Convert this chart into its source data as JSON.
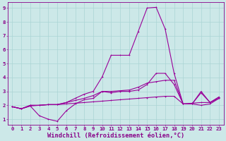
{
  "xlabel": "Windchill (Refroidissement éolien,°C)",
  "bg_color": "#cce8e8",
  "line_color": "#990099",
  "xlim": [
    -0.5,
    23.5
  ],
  "ylim": [
    0.6,
    9.4
  ],
  "yticks": [
    1,
    2,
    3,
    4,
    5,
    6,
    7,
    8,
    9
  ],
  "xticks": [
    0,
    1,
    2,
    3,
    4,
    5,
    6,
    7,
    8,
    9,
    10,
    11,
    12,
    13,
    14,
    15,
    16,
    17,
    18,
    19,
    20,
    21,
    22,
    23
  ],
  "grid_color": "#aad4d4",
  "axis_color": "#880088",
  "tick_fontsize": 5.2,
  "xlabel_fontsize": 6.2,
  "line_width": 0.8,
  "marker_size": 1.8,
  "lines": [
    [
      1.9,
      1.75,
      2.0,
      2.0,
      2.05,
      2.05,
      2.1,
      2.15,
      2.2,
      2.25,
      2.3,
      2.35,
      2.4,
      2.45,
      2.5,
      2.55,
      2.6,
      2.65,
      2.65,
      2.1,
      2.1,
      2.0,
      2.1,
      2.5
    ],
    [
      1.9,
      1.75,
      1.95,
      1.25,
      1.0,
      0.85,
      1.6,
      2.1,
      2.4,
      2.5,
      3.0,
      2.9,
      3.0,
      3.0,
      3.1,
      3.5,
      4.3,
      4.3,
      3.5,
      2.1,
      2.1,
      3.0,
      2.2,
      2.6
    ],
    [
      1.9,
      1.75,
      1.95,
      2.0,
      2.05,
      2.05,
      2.2,
      2.5,
      2.8,
      3.0,
      4.05,
      5.6,
      5.6,
      5.6,
      7.3,
      9.0,
      9.05,
      7.5,
      4.3,
      2.1,
      2.1,
      2.9,
      2.2,
      2.6
    ],
    [
      1.9,
      1.75,
      2.0,
      2.0,
      2.05,
      2.05,
      2.2,
      2.35,
      2.5,
      2.7,
      3.0,
      3.0,
      3.05,
      3.1,
      3.3,
      3.6,
      3.7,
      3.8,
      3.8,
      2.1,
      2.15,
      2.2,
      2.2,
      2.5
    ]
  ]
}
